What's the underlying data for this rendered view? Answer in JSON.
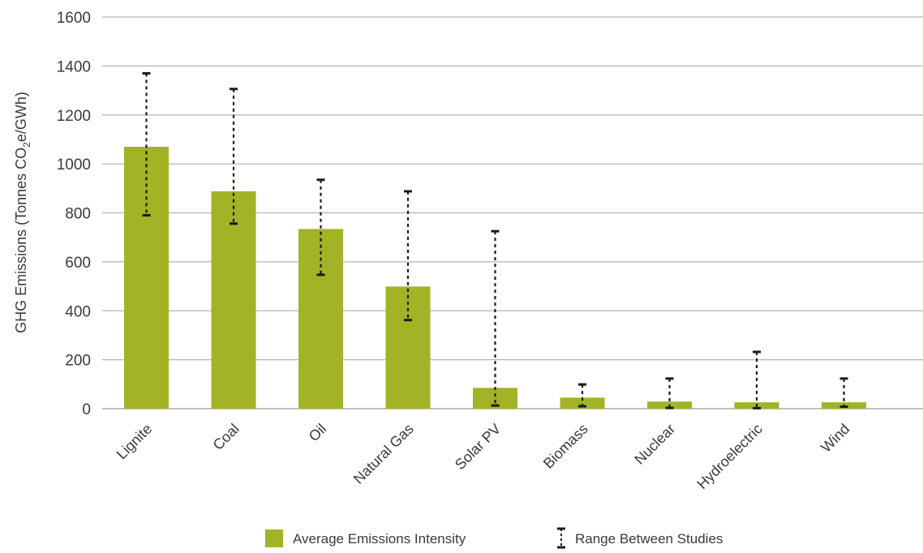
{
  "chart_data": {
    "type": "bar",
    "categories": [
      "Lignite",
      "Coal",
      "Oil",
      "Natural Gas",
      "Solar PV",
      "Biomass",
      "Nuclear",
      "Hydroelectric",
      "Wind"
    ],
    "series": [
      {
        "name": "Average Emissions Intensity",
        "values": [
          1070,
          888,
          734,
          499,
          85,
          45,
          29,
          26,
          26
        ],
        "color": "#a2b325"
      }
    ],
    "error_ranges": {
      "name": "Range Between Studies",
      "low": [
        790,
        756,
        547,
        362,
        13,
        10,
        3,
        2,
        8
      ],
      "high": [
        1370,
        1306,
        935,
        888,
        725,
        99,
        123,
        232,
        123
      ],
      "color": "#1a1a1a"
    },
    "ylabel_main": "GHG Emissions (Tonnes CO",
    "ylabel_sub": "2",
    "ylabel_tail": "e/GWh)",
    "xlabel": "",
    "ylim": [
      0,
      1600
    ],
    "yticks": [
      0,
      200,
      400,
      600,
      800,
      1000,
      1200,
      1400,
      1600
    ],
    "grid": true,
    "legend_position": "bottom"
  },
  "legend": {
    "bar_label": "Average Emissions Intensity",
    "range_label": "Range Between Studies"
  },
  "colors": {
    "grid": "#b5b5b5",
    "text": "#3a3a3a"
  }
}
